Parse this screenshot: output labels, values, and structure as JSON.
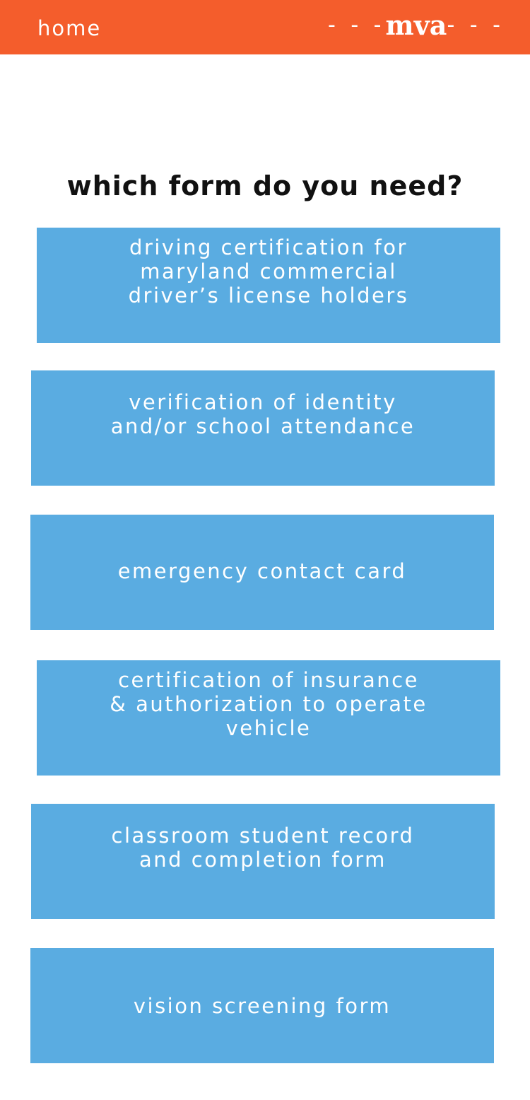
{
  "header": {
    "home_label": "home",
    "brand_dash_left": "- - -",
    "brand_name": "mva",
    "brand_dash_right": "- - -",
    "bg_color": "#f45d2c"
  },
  "main": {
    "title": "which form do you need?",
    "forms": [
      {
        "label": "driving certification for\nmaryland commercial\ndriver’s license holders"
      },
      {
        "label": "verification of identity\nand/or school attendance"
      },
      {
        "label": "emergency contact card"
      },
      {
        "label": "certification of insurance\n& authorization to operate\nvehicle"
      },
      {
        "label": "classroom student record\nand completion form"
      },
      {
        "label": "vision screening form"
      }
    ],
    "button_color": "#5aace1"
  }
}
